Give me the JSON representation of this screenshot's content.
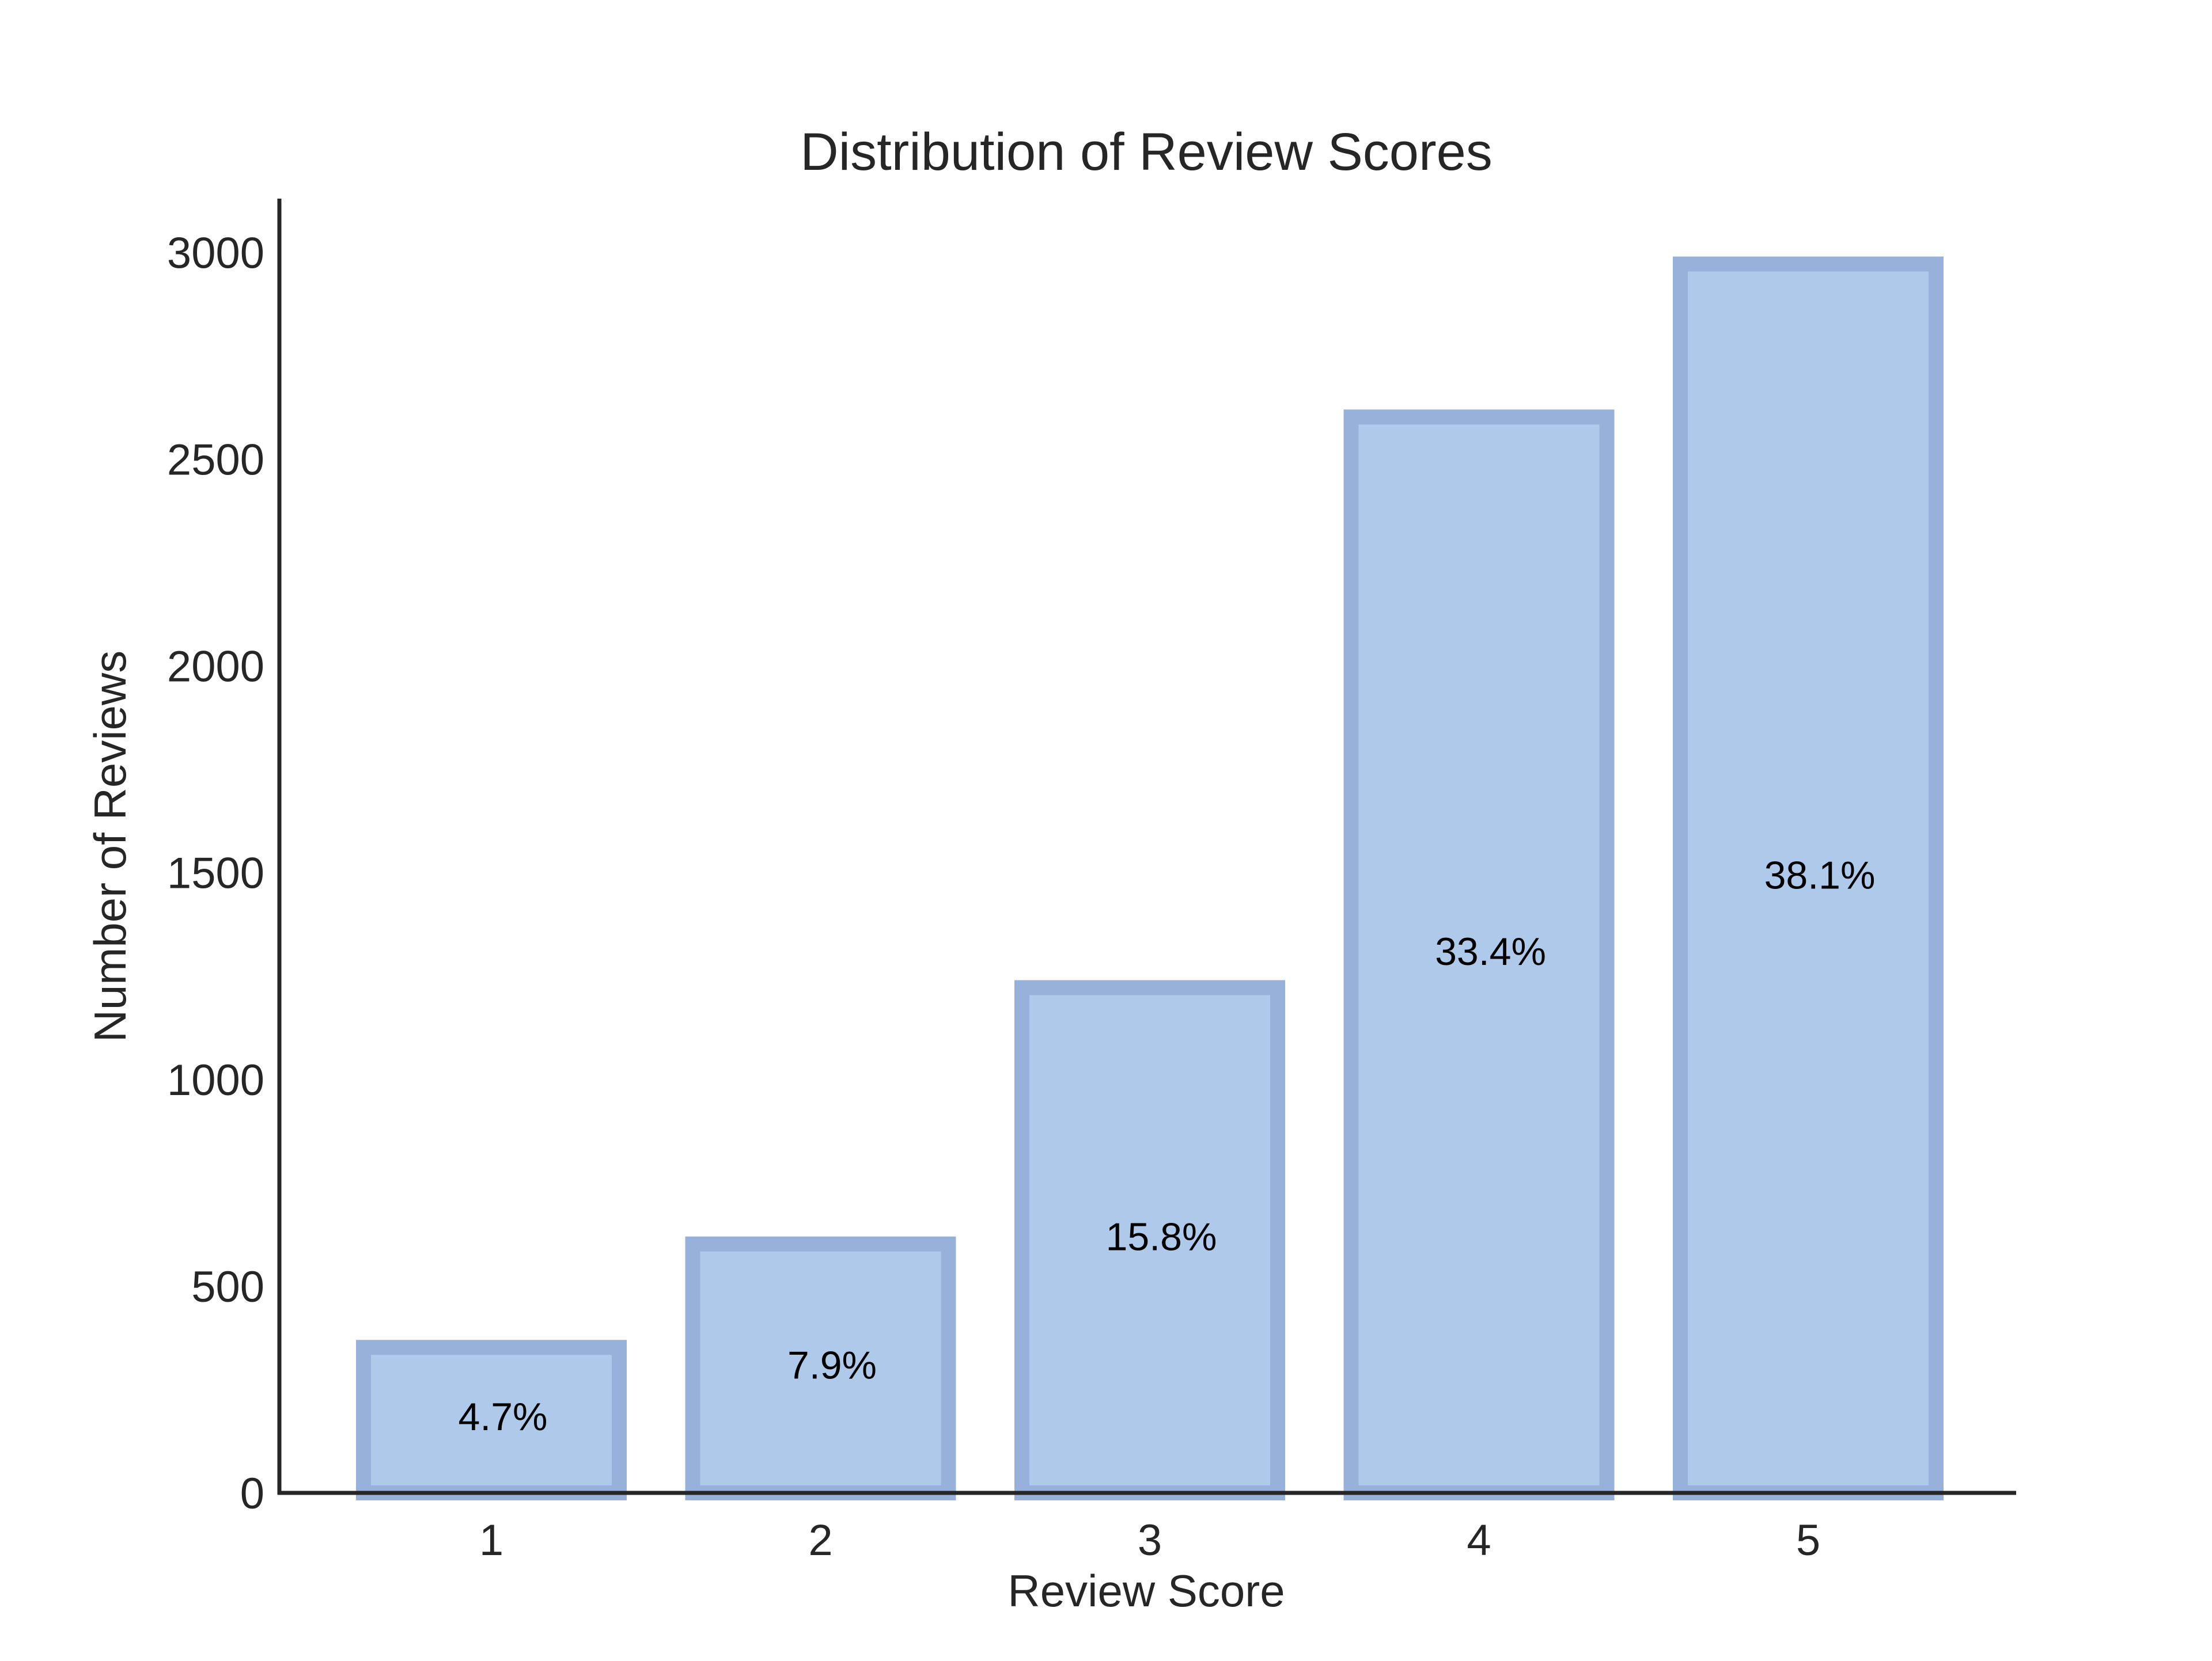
{
  "chart_data": {
    "type": "bar",
    "title": "Distribution of Review Scores",
    "xlabel": "Review Score",
    "ylabel": "Number of Reviews",
    "categories": [
      "1",
      "2",
      "3",
      "4",
      "5"
    ],
    "values": [
      370,
      620,
      1240,
      2620,
      2990
    ],
    "data_labels": [
      "4.7%",
      "7.9%",
      "15.8%",
      "33.4%",
      "38.1%"
    ],
    "ylim": [
      0,
      3130
    ],
    "yticks": [
      0,
      500,
      1000,
      1500,
      2000,
      2500,
      3000
    ],
    "grid": false,
    "legend": "none",
    "colors": {
      "bar_fill": "#aec9ea",
      "bar_edge": "#97b1db",
      "axis": "#262626"
    }
  }
}
